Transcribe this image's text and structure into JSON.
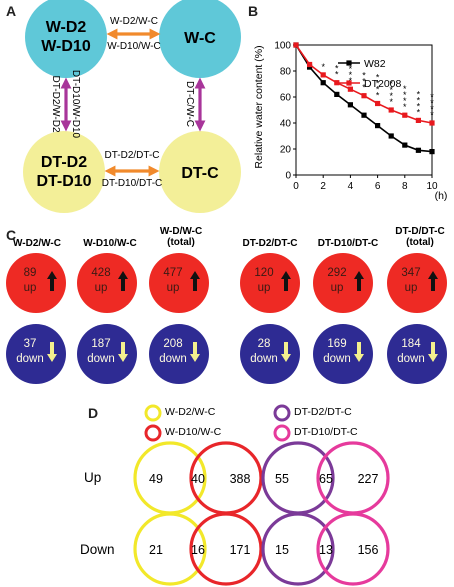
{
  "panel_letters": {
    "a": "A",
    "b": "B",
    "c": "C",
    "d": "D"
  },
  "panel_a": {
    "nodes": {
      "wd": [
        "W-D2",
        "W-D10"
      ],
      "wc": "W-C",
      "dtd": [
        "DT-D2",
        "DT-D10"
      ],
      "dtc": "DT-C"
    },
    "edges": {
      "top_1": "W-D2/W-C",
      "top_2": "W-D10/W-C",
      "left_1": "DT-D2/W-D2",
      "left_2": "DT-D10/W-D10",
      "right": "DT-C/W-C",
      "bottom_1": "DT-D2/DT-C",
      "bottom_2": "DT-D10/DT-C"
    },
    "colors": {
      "w_node": "#5fc8d8",
      "dt_node": "#f3ef98",
      "horizontal_arrow": "#f18a2c",
      "vertical_arrow": "#a8359a"
    }
  },
  "chart_data": {
    "type": "line",
    "ylabel": "Relative water content (%)",
    "xlabel": "",
    "x_unit_label": "(h)",
    "xlim": [
      0,
      10
    ],
    "ylim": [
      0,
      100
    ],
    "xticks": [
      0,
      2,
      4,
      6,
      8,
      10
    ],
    "yticks": [
      0,
      20,
      40,
      60,
      80,
      100
    ],
    "x": [
      0,
      1,
      2,
      3,
      4,
      5,
      6,
      7,
      8,
      9,
      10
    ],
    "series": [
      {
        "name": "W82",
        "color": "#000000",
        "marker": "square",
        "values": [
          100,
          83,
          71,
          62,
          54,
          46,
          38,
          30,
          23,
          19,
          18
        ]
      },
      {
        "name": "DT2008",
        "color": "#e8191e",
        "marker": "square",
        "values": [
          100,
          85,
          77,
          71,
          66,
          61,
          55,
          50,
          46,
          42,
          40
        ]
      }
    ],
    "significance_label": "*",
    "significance": [
      {
        "x": 1,
        "stars": 0
      },
      {
        "x": 2,
        "stars": 1
      },
      {
        "x": 3,
        "stars": 2
      },
      {
        "x": 4,
        "stars": 3
      },
      {
        "x": 5,
        "stars": 3
      },
      {
        "x": 6,
        "stars": 4
      },
      {
        "x": 7,
        "stars": 4
      },
      {
        "x": 8,
        "stars": 4
      },
      {
        "x": 9,
        "stars": 4
      },
      {
        "x": 10,
        "stars": 4
      }
    ],
    "legend_position": "top-right"
  },
  "panel_c": {
    "groups": [
      {
        "title": [
          "W-D2/W-C"
        ],
        "up": "89",
        "down": "37"
      },
      {
        "title": [
          "W-D10/W-C"
        ],
        "up": "428",
        "down": "187"
      },
      {
        "title": [
          "W-D/W-C",
          "(total)"
        ],
        "up": "477",
        "down": "208"
      },
      {
        "title": [
          "DT-D2/DT-C"
        ],
        "up": "120",
        "down": "28"
      },
      {
        "title": [
          "DT-D10/DT-C"
        ],
        "up": "292",
        "down": "169"
      },
      {
        "title": [
          "DT-D/DT-C",
          "(total)"
        ],
        "up": "347",
        "down": "184"
      }
    ],
    "up_word": "up",
    "down_word": "down",
    "colors": {
      "up_circle": "#ee2a24",
      "down_circle": "#2e2b93",
      "up_arrow": "#111111",
      "down_arrow": "#f4f08e"
    }
  },
  "panel_d": {
    "legend": [
      {
        "label": "W-D2/W-C",
        "color": "#f2e82a"
      },
      {
        "label": "W-D10/W-C",
        "color": "#e8262a"
      },
      {
        "label": "DT-D2/DT-C",
        "color": "#7b3a98"
      },
      {
        "label": "DT-D10/DT-C",
        "color": "#e63a9c"
      }
    ],
    "row_labels": {
      "up": "Up",
      "down": "Down"
    },
    "venn": {
      "w_up": {
        "left": "49",
        "overlap": "40",
        "right": "388"
      },
      "dt_up": {
        "left": "55",
        "overlap": "65",
        "right": "227"
      },
      "w_down": {
        "left": "21",
        "overlap": "16",
        "right": "171"
      },
      "dt_down": {
        "left": "15",
        "overlap": "13",
        "right": "156"
      }
    }
  }
}
